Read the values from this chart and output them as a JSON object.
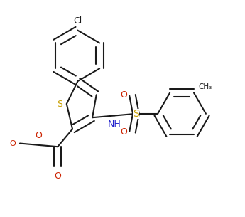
{
  "background_color": "#ffffff",
  "line_color": "#1a1a1a",
  "bond_lw": 1.5,
  "dbo": 0.055,
  "atom_colors": {
    "S": "#c8a000",
    "O": "#cc2200",
    "N": "#2222cc",
    "Cl": "#1a1a1a",
    "C": "#1a1a1a"
  },
  "font_size": 9.0,
  "figsize": [
    3.45,
    3.05
  ],
  "dpi": 100
}
